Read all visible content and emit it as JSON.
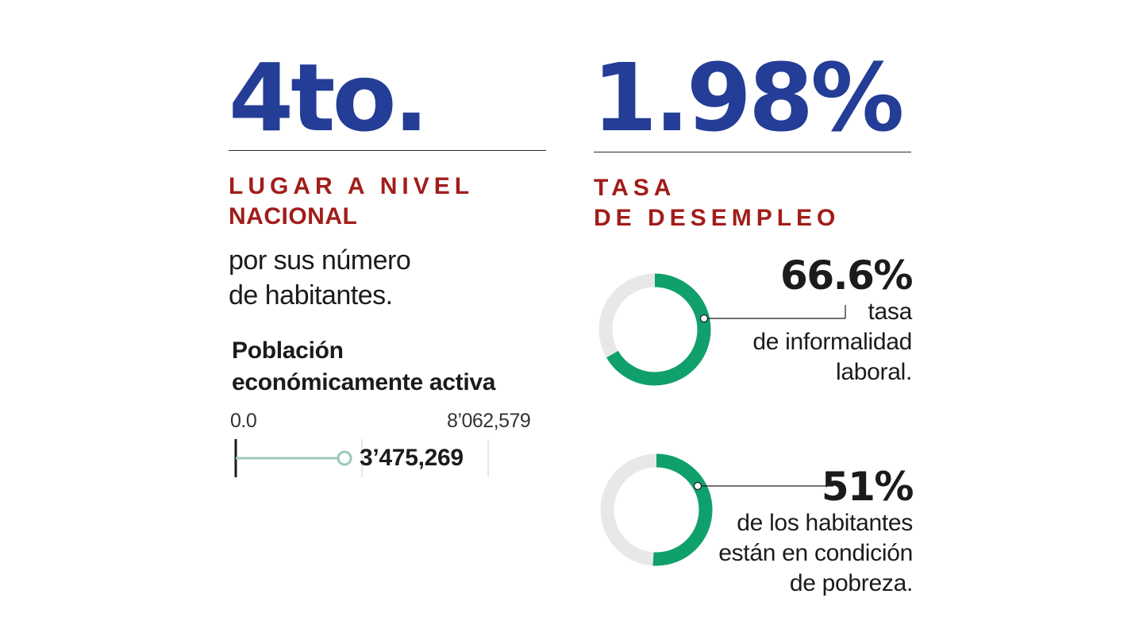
{
  "rank": {
    "value": "4to.",
    "label_lines": [
      "LUGAR A NIVEL",
      "NACIONAL"
    ],
    "description_lines": [
      "por sus número",
      "de habitantes."
    ]
  },
  "unemployment": {
    "value": "1.98%",
    "label_lines": [
      "TASA",
      "DE DESEMPLEO"
    ]
  },
  "pea": {
    "title_lines": [
      "Población",
      "económicamente activa"
    ],
    "min_label": "0.0",
    "max_label": "8’062,579",
    "value_label": "3’475,269",
    "fraction": 0.431
  },
  "informality": {
    "value": "66.6%",
    "fraction": 0.666,
    "description_lines": [
      "tasa",
      "de informalidad",
      "laboral."
    ]
  },
  "poverty": {
    "value": "51%",
    "fraction": 0.51,
    "description_lines": [
      "de los habitantes",
      "están en condición",
      "de pobreza."
    ]
  },
  "colors": {
    "headline_blue": "#243d96",
    "label_red": "#a11d1a",
    "donut_green": "#10a06c",
    "donut_track": "#e8e8e8",
    "bar_line": "#9cc8b8"
  }
}
